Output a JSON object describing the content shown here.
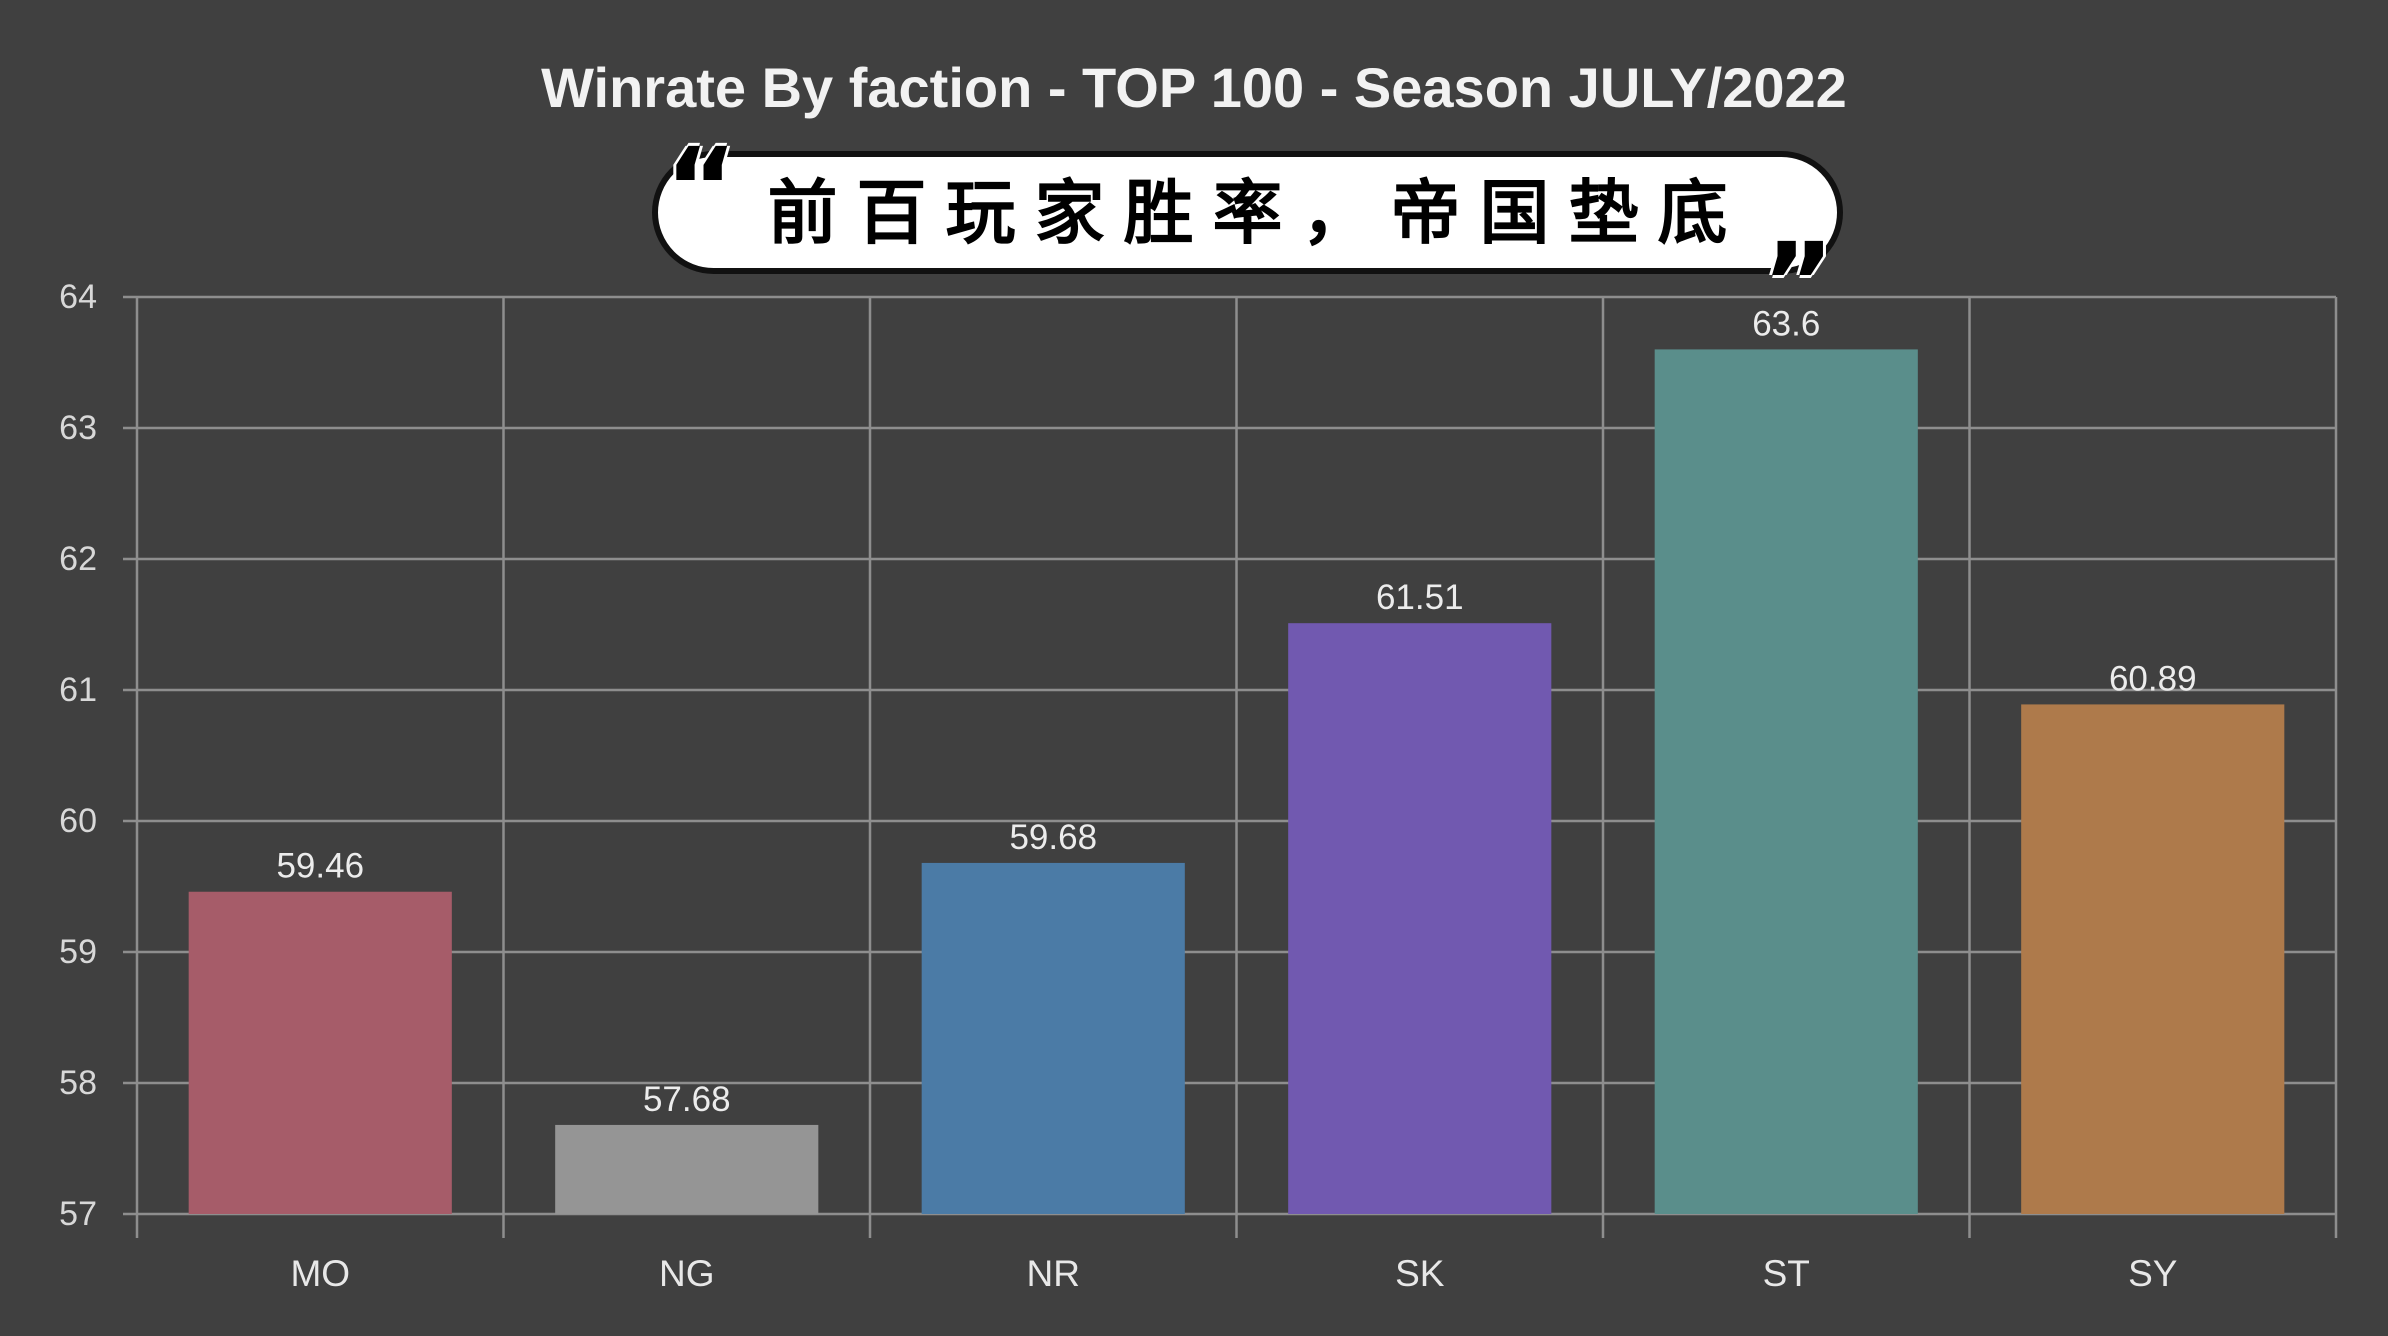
{
  "chart_data": {
    "type": "bar",
    "title": "Winrate By faction - TOP 100 - Season JULY/2022",
    "categories": [
      "MO",
      "NG",
      "NR",
      "SK",
      "ST",
      "SY"
    ],
    "values": [
      59.46,
      57.68,
      59.68,
      61.51,
      63.6,
      60.89
    ],
    "colors": [
      "#a65c69",
      "#959595",
      "#4b7ba6",
      "#7159b0",
      "#5a8e8b",
      "#ae7a4b"
    ],
    "ylim": [
      57,
      64
    ],
    "y_ticks": [
      57,
      58,
      59,
      60,
      61,
      62,
      63,
      64
    ],
    "grid": true,
    "legend": false,
    "data_labels": true
  },
  "callout": {
    "text": "前百玩家胜率，帝国垫底",
    "open_quote": "“",
    "close_quote": "”"
  },
  "colors": {
    "background": "#404040",
    "grid": "#8e8e8e",
    "callout_fill": "#ffffff",
    "callout_border": "#111111"
  }
}
